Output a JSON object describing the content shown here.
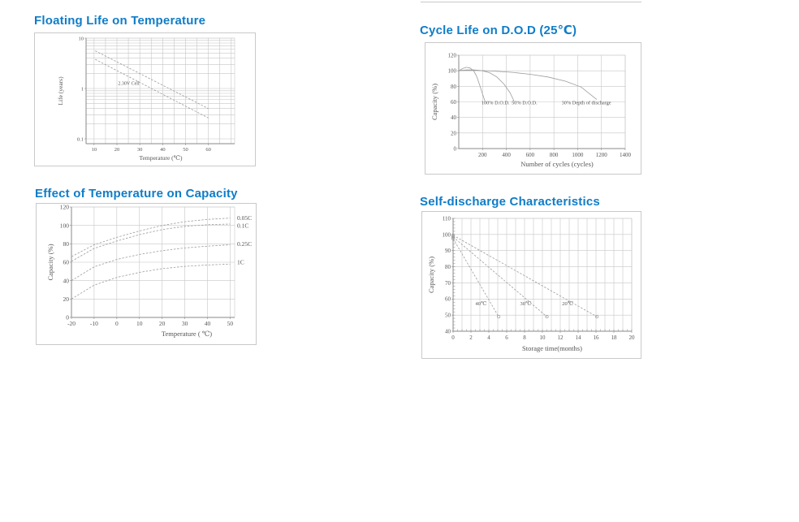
{
  "colors": {
    "title": "#0f7dc8",
    "card_border": "#c9c9c9",
    "grid": "#c6c6c6",
    "axis": "#8a8a8a",
    "curve": "#9c9c9c",
    "chart_text": "#555555"
  },
  "chart_data": [
    {
      "id": "floating-life",
      "type": "line",
      "title": "Floating Life on Temperature",
      "xlabel": "Temperature (℃)",
      "ylabel": "Life (years)",
      "y_scale": "log",
      "x_range": [
        6.5,
        71.5
      ],
      "y_range": [
        0.08,
        10
      ],
      "grid": true,
      "x_gridlines": [
        10,
        15,
        20,
        25,
        30,
        35,
        40,
        45,
        50,
        55,
        60,
        65,
        70
      ],
      "y_gridlines": [
        0.1,
        0.2,
        0.3,
        0.4,
        0.5,
        0.6,
        0.7,
        0.8,
        0.9,
        1,
        2,
        3,
        4,
        5,
        6,
        7,
        8,
        9,
        10
      ],
      "x_ticks": {
        "values": [
          10,
          20,
          30,
          40,
          50,
          60
        ],
        "labels": [
          "10",
          "20",
          "30",
          "40",
          "50",
          "60"
        ]
      },
      "y_ticks": {
        "values": [
          10,
          1,
          0.1
        ],
        "labels": [
          "10",
          "1",
          "0.1"
        ]
      },
      "series": [
        {
          "name": "float-life-upper-limit",
          "style": "dashed",
          "points": [
            [
              10.5,
              5.6
            ],
            [
              60,
              0.4
            ]
          ]
        },
        {
          "name": "float-life-lower-limit",
          "style": "dashed",
          "points": [
            [
              10.5,
              3.8
            ],
            [
              60,
              0.26
            ]
          ]
        }
      ],
      "annotations": [
        {
          "text": "2.30V Cell",
          "x": 20.5,
          "y": 1.18,
          "anchor": "start"
        }
      ]
    },
    {
      "id": "cycle-life",
      "type": "line",
      "title": "Cycle Life on D.O.D (25℃)",
      "xlabel": "Number of cycles (cycles)",
      "ylabel": "Capacity  (%)",
      "y_scale": "linear",
      "x_range": [
        0,
        1400
      ],
      "y_range": [
        0,
        120
      ],
      "grid": true,
      "x_gridlines": [
        200,
        400,
        600,
        800,
        1000,
        1200,
        1400
      ],
      "y_gridlines": [
        20,
        40,
        60,
        80,
        100,
        120
      ],
      "x_ticks": {
        "values": [
          200,
          400,
          600,
          800,
          1000,
          1200,
          1400
        ],
        "labels": [
          "200",
          "400",
          "600",
          "800",
          "1000",
          "1200",
          "1400"
        ]
      },
      "y_ticks": {
        "values": [
          0,
          20,
          40,
          60,
          80,
          100,
          120
        ],
        "labels": [
          "0",
          "20",
          "40",
          "60",
          "80",
          "100",
          "120"
        ]
      },
      "series": [
        {
          "name": "100-percent-dod",
          "style": "solid",
          "points": [
            [
              0,
              100
            ],
            [
              35,
              103
            ],
            [
              65,
              104.5
            ],
            [
              95,
              103.5
            ],
            [
              125,
              100
            ],
            [
              150,
              93
            ],
            [
              175,
              82
            ],
            [
              200,
              70
            ],
            [
              220,
              61
            ]
          ]
        },
        {
          "name": "50-percent-dod",
          "style": "solid",
          "points": [
            [
              0,
              100
            ],
            [
              60,
              101
            ],
            [
              130,
              101
            ],
            [
              200,
              100
            ],
            [
              260,
              97.5
            ],
            [
              320,
              92
            ],
            [
              380,
              83
            ],
            [
              430,
              72
            ],
            [
              465,
              61
            ]
          ]
        },
        {
          "name": "30-percent-dod",
          "style": "solid",
          "points": [
            [
              0,
              100.5
            ],
            [
              150,
              100.5
            ],
            [
              300,
              99.5
            ],
            [
              450,
              98
            ],
            [
              600,
              95.5
            ],
            [
              750,
              92
            ],
            [
              900,
              86.5
            ],
            [
              1030,
              79
            ],
            [
              1160,
              63
            ]
          ]
        }
      ],
      "annotations": [
        {
          "text": "100% D.O.D.",
          "x": 190,
          "y": 57,
          "anchor": "start"
        },
        {
          "text": "50% D.O.D.",
          "x": 445,
          "y": 57,
          "anchor": "start"
        },
        {
          "text": "30% Depth of  discharge",
          "x": 865,
          "y": 57,
          "anchor": "start"
        }
      ]
    },
    {
      "id": "temperature-capacity",
      "type": "line",
      "title": "Effect of Temperature on Capacity",
      "xlabel": "Temperature ( ℃)",
      "ylabel": "Capacity  (%)",
      "y_scale": "linear",
      "x_range": [
        -20,
        52
      ],
      "y_range": [
        0,
        120
      ],
      "grid": true,
      "x_gridlines": [
        -20,
        -10,
        0,
        10,
        20,
        30,
        40,
        50
      ],
      "y_gridlines": [
        20,
        40,
        60,
        80,
        100,
        120
      ],
      "x_ticks": {
        "values": [
          -20,
          -10,
          0,
          10,
          20,
          30,
          40,
          50
        ],
        "labels": [
          "-20",
          "-10",
          "0",
          "10",
          "20",
          "30",
          "40",
          "50"
        ]
      },
      "y_ticks": {
        "values": [
          0,
          20,
          40,
          60,
          80,
          100,
          120
        ],
        "labels": [
          "0",
          "20",
          "40",
          "60",
          "80",
          "100",
          "120"
        ]
      },
      "series": [
        {
          "name": "rate-0.05C",
          "style": "dashed",
          "points": [
            [
              -20,
              66
            ],
            [
              -10,
              79
            ],
            [
              0,
              87
            ],
            [
              10,
              94
            ],
            [
              20,
              100
            ],
            [
              30,
              104
            ],
            [
              40,
              106.5
            ],
            [
              50,
              108
            ]
          ]
        },
        {
          "name": "rate-0.1C",
          "style": "dashed",
          "points": [
            [
              -20,
              61
            ],
            [
              -10,
              75
            ],
            [
              0,
              83
            ],
            [
              10,
              90
            ],
            [
              20,
              95.5
            ],
            [
              30,
              99
            ],
            [
              40,
              100.8
            ],
            [
              50,
              101.5
            ]
          ]
        },
        {
          "name": "rate-0.25C",
          "style": "dashed",
          "points": [
            [
              -20,
              40
            ],
            [
              -10,
              55
            ],
            [
              0,
              63
            ],
            [
              10,
              68.5
            ],
            [
              20,
              72.5
            ],
            [
              30,
              75.5
            ],
            [
              40,
              77.5
            ],
            [
              50,
              79
            ]
          ]
        },
        {
          "name": "rate-1C",
          "style": "dashed",
          "points": [
            [
              -20,
              20
            ],
            [
              -10,
              35
            ],
            [
              0,
              43.5
            ],
            [
              10,
              49
            ],
            [
              20,
              53
            ],
            [
              30,
              55.5
            ],
            [
              40,
              57
            ],
            [
              50,
              58
            ]
          ]
        }
      ],
      "right_labels": [
        {
          "text": "0.05C",
          "y": 108
        },
        {
          "text": "0.1C",
          "y": 100
        },
        {
          "text": "0.25C",
          "y": 80
        },
        {
          "text": "1C",
          "y": 60
        }
      ]
    },
    {
      "id": "self-discharge",
      "type": "line",
      "title": "Self-discharge Characteristics",
      "xlabel": "Storage time(months)",
      "ylabel": "Capacity (%)",
      "y_scale": "linear",
      "x_range": [
        0,
        20
      ],
      "y_range": [
        40,
        110
      ],
      "grid": true,
      "x_gridlines": [
        1,
        2,
        3,
        4,
        5,
        6,
        7,
        8,
        9,
        10,
        11,
        12,
        13,
        14,
        15,
        16,
        17,
        18,
        19,
        20
      ],
      "y_gridlines": [
        50,
        60,
        70,
        80,
        90,
        100,
        110
      ],
      "x_minor_step": 0.5,
      "y_minor_step": 2,
      "x_ticks": {
        "values": [
          0,
          2,
          4,
          6,
          8,
          10,
          12,
          14,
          16,
          18,
          20
        ],
        "labels": [
          "0",
          "2",
          "4",
          "6",
          "8",
          "10",
          "12",
          "14",
          "16",
          "18",
          "20"
        ]
      },
      "y_ticks": {
        "values": [
          40,
          50,
          60,
          70,
          80,
          90,
          100,
          110
        ],
        "labels": [
          "40",
          "50",
          "60",
          "70",
          "80",
          "90",
          "100",
          "110"
        ]
      },
      "series": [
        {
          "name": "storage-40C",
          "style": "dashed",
          "markers": true,
          "points": [
            [
              0,
              97.5
            ],
            [
              5.1,
              49
            ]
          ]
        },
        {
          "name": "storage-30C",
          "style": "dashed",
          "markers": true,
          "points": [
            [
              0,
              98.5
            ],
            [
              10.5,
              49
            ]
          ]
        },
        {
          "name": "storage-20C",
          "style": "dashed",
          "markers": true,
          "points": [
            [
              0,
              99.5
            ],
            [
              16.1,
              49
            ]
          ]
        }
      ],
      "annotations": [
        {
          "text": "40℃",
          "x": 2.5,
          "y": 56,
          "anchor": "start"
        },
        {
          "text": "30℃",
          "x": 7.5,
          "y": 56,
          "anchor": "start"
        },
        {
          "text": "20℃",
          "x": 12.2,
          "y": 56,
          "anchor": "start"
        }
      ]
    }
  ]
}
